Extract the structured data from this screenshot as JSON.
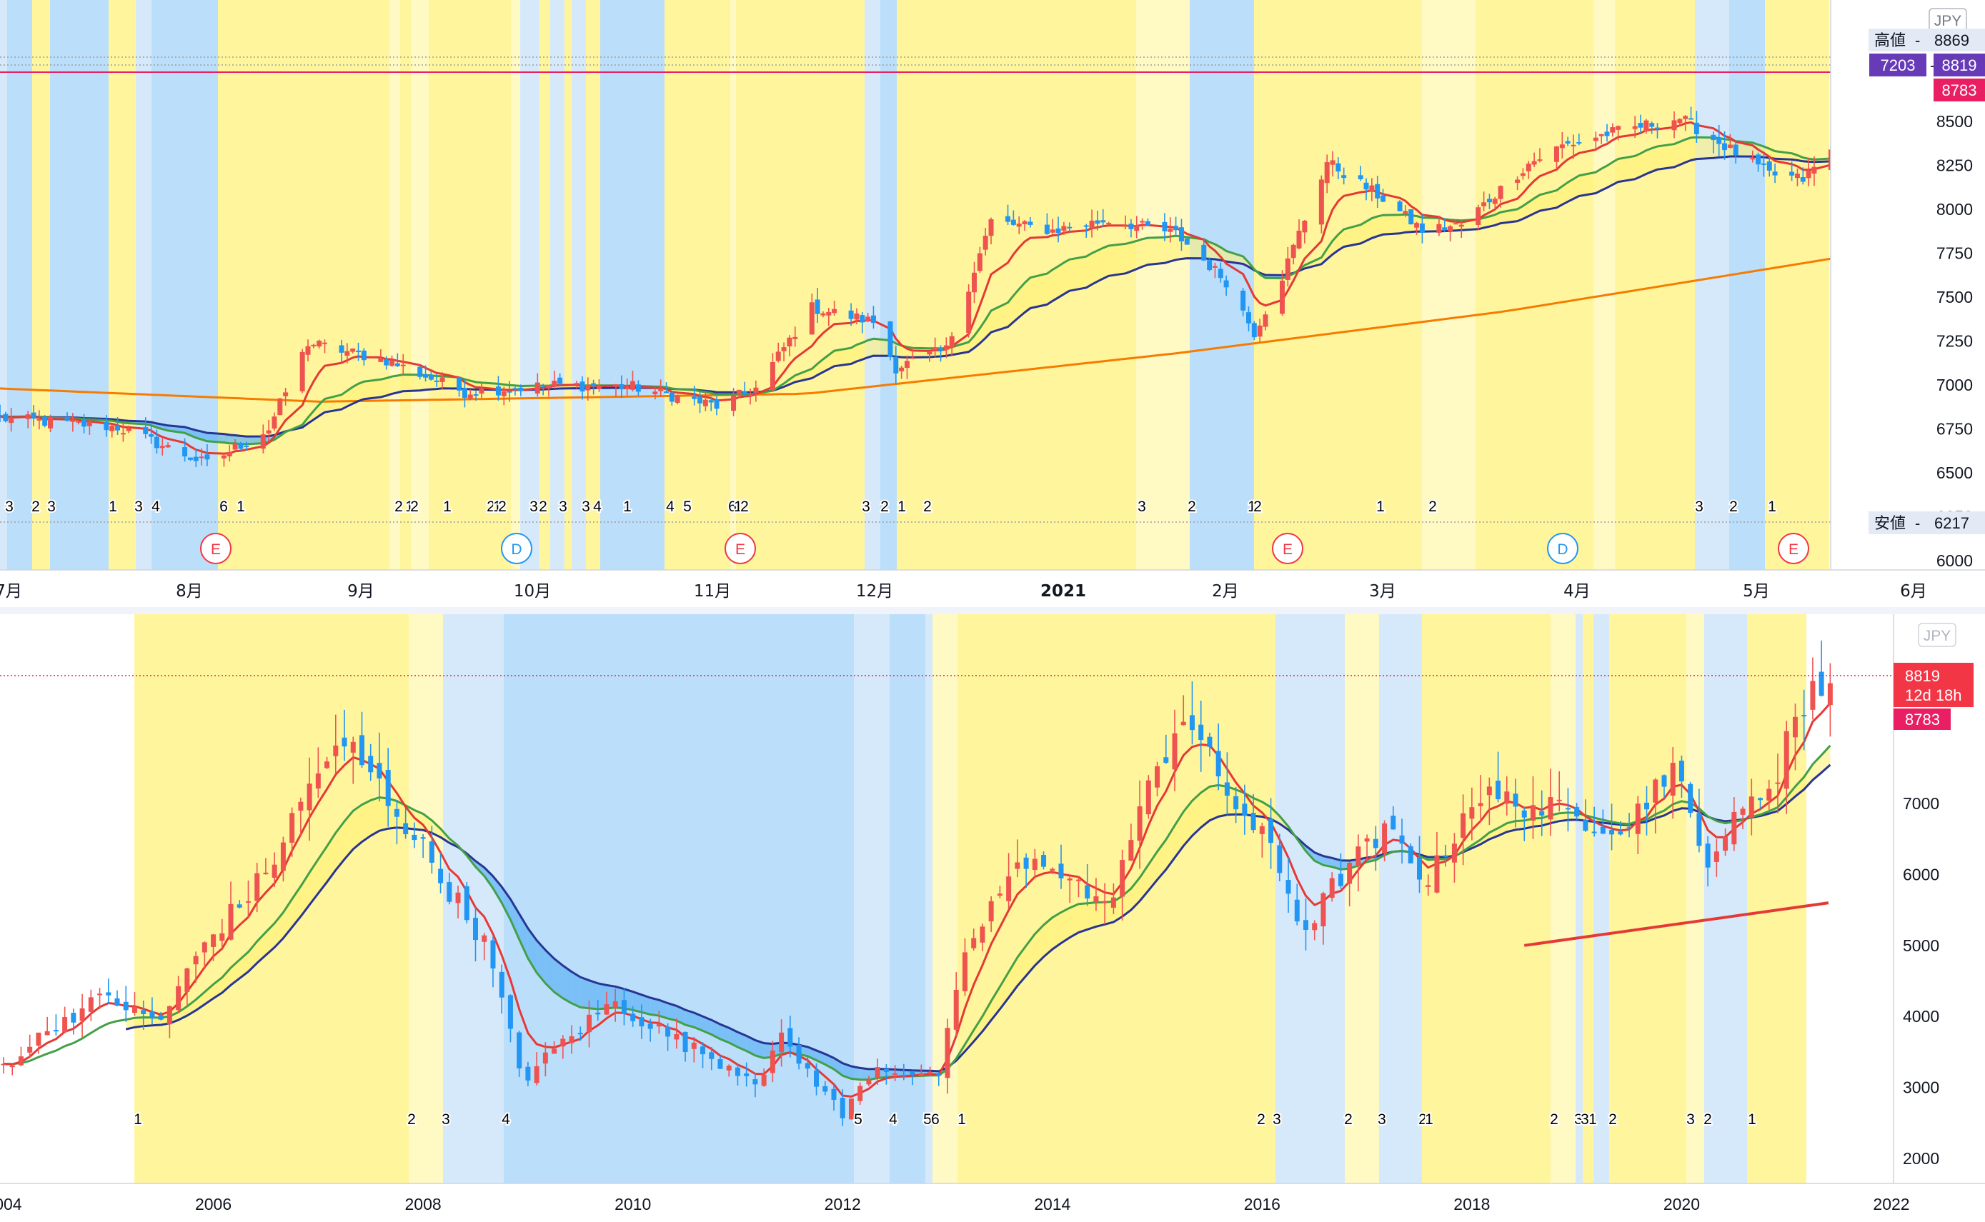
{
  "currency": "JPY",
  "colors": {
    "up": "#ef5350",
    "down": "#2196f3",
    "bull_zone": "#fff59d",
    "bear_zone": "#bbdefb",
    "ema_fast": "#e53935",
    "ema_mid": "#43a047",
    "ema_slow": "#283593",
    "ma_long": "#f57c00",
    "price_line": "#e91e63",
    "high_badge": "#673ab7"
  },
  "top_panel": {
    "high_label": "高値",
    "high_value": "8869",
    "low_label": "安値",
    "low_value": "6217",
    "badge_code": "7203",
    "last_price": "8819",
    "second_price": "8783",
    "earnings_letter": "E",
    "dividend_letter": "D",
    "y_ticks": [
      "8500",
      "8250",
      "8000",
      "7750",
      "7500",
      "7250",
      "7000",
      "6750",
      "6500",
      "6250",
      "6000"
    ],
    "x_labels": [
      "7月",
      "8月",
      "9月",
      "10月",
      "11月",
      "12月",
      "2021",
      "2月",
      "3月",
      "4月",
      "5月",
      "6月"
    ],
    "count_labels": [
      "3",
      "2",
      "3",
      "1",
      "3",
      "4",
      "6",
      "1",
      "2",
      "1",
      "2",
      "1",
      "2",
      "1",
      "2",
      "3",
      "2",
      "3",
      "3",
      "4",
      "1",
      "4",
      "5",
      "6",
      "1",
      "2",
      "3",
      "2",
      "1",
      "2",
      "3",
      "2",
      "1",
      "2",
      "1",
      "2",
      "3",
      "2",
      "1"
    ]
  },
  "bottom_panel": {
    "last_price": "8819",
    "countdown": "12d 18h",
    "second_price": "8783",
    "y_ticks": [
      "7000",
      "6000",
      "5000",
      "4000",
      "3000",
      "2000"
    ],
    "x_labels": [
      "2004",
      "2006",
      "2008",
      "2010",
      "2012",
      "2014",
      "2016",
      "2018",
      "2020",
      "2022"
    ],
    "count_labels": [
      "1",
      "2",
      "3",
      "4",
      "5",
      "4",
      "5",
      "6",
      "1",
      "2",
      "3",
      "2",
      "3",
      "2",
      "1",
      "2",
      "3",
      "3",
      "1",
      "2",
      "3",
      "2",
      "1"
    ]
  },
  "chart_data": [
    {
      "type": "candlestick",
      "title": "",
      "timeframe": "daily",
      "x_range": [
        "2020-07",
        "2021-06"
      ],
      "ylim": [
        6000,
        8900
      ],
      "grid": false,
      "indicators": [
        "EMA fast (red)",
        "EMA mid (green)",
        "EMA slow (navy)",
        "long MA (orange)"
      ],
      "close_path": [
        [
          "2020-06-24",
          6810
        ],
        [
          "2020-07-15",
          6760
        ],
        [
          "2020-07-31",
          6550
        ],
        [
          "2020-08-11",
          6750
        ],
        [
          "2020-08-18",
          7240
        ],
        [
          "2020-09-01",
          7140
        ],
        [
          "2020-09-15",
          6960
        ],
        [
          "2020-10-01",
          7000
        ],
        [
          "2020-10-15",
          6990
        ],
        [
          "2020-10-30",
          6880
        ],
        [
          "2020-11-06",
          6980
        ],
        [
          "2020-11-16",
          7440
        ],
        [
          "2020-11-27",
          7360
        ],
        [
          "2020-12-01",
          7100
        ],
        [
          "2020-12-10",
          7200
        ],
        [
          "2020-12-18",
          7930
        ],
        [
          "2020-12-29",
          7880
        ],
        [
          "2021-01-08",
          7940
        ],
        [
          "2021-01-20",
          7860
        ],
        [
          "2021-01-29",
          7590
        ],
        [
          "2021-02-03",
          7300
        ],
        [
          "2021-02-08",
          7620
        ],
        [
          "2021-02-16",
          8270
        ],
        [
          "2021-02-26",
          8060
        ],
        [
          "2021-03-05",
          7880
        ],
        [
          "2021-03-12",
          7910
        ],
        [
          "2021-03-24",
          8260
        ],
        [
          "2021-03-30",
          8360
        ],
        [
          "2021-04-07",
          8430
        ],
        [
          "2021-04-20",
          8520
        ],
        [
          "2021-05-06",
          8200
        ],
        [
          "2021-05-12",
          8170
        ],
        [
          "2021-05-21",
          8460
        ],
        [
          "2021-05-27",
          8819
        ]
      ],
      "high": 8869,
      "low": 6217,
      "last": 8819,
      "reference": 8783,
      "events": [
        {
          "type": "E",
          "date": "2020-08-06"
        },
        {
          "type": "D",
          "date": "2020-09-29"
        },
        {
          "type": "E",
          "date": "2020-11-06"
        },
        {
          "type": "E",
          "date": "2021-02-10"
        },
        {
          "type": "D",
          "date": "2021-03-30"
        },
        {
          "type": "E",
          "date": "2021-05-12"
        }
      ]
    },
    {
      "type": "candlestick",
      "title": "",
      "timeframe": "monthly",
      "x_range": [
        2004,
        2022
      ],
      "ylim": [
        1700,
        9200
      ],
      "grid": false,
      "indicators": [
        "EMA fast (red)",
        "EMA mid (green)",
        "EMA slow (navy)",
        "long MA (red, from 2018)"
      ],
      "close_path": [
        [
          2004.0,
          3300
        ],
        [
          2004.5,
          3900
        ],
        [
          2005.0,
          4300
        ],
        [
          2005.3,
          4000
        ],
        [
          2005.5,
          3950
        ],
        [
          2005.9,
          5000
        ],
        [
          2006.5,
          6000
        ],
        [
          2007.0,
          7500
        ],
        [
          2007.3,
          7800
        ],
        [
          2007.8,
          6800
        ],
        [
          2008.2,
          5900
        ],
        [
          2008.6,
          5000
        ],
        [
          2008.95,
          3100
        ],
        [
          2009.3,
          3600
        ],
        [
          2009.8,
          4200
        ],
        [
          2010.5,
          3600
        ],
        [
          2011.2,
          3100
        ],
        [
          2011.4,
          3700
        ],
        [
          2011.8,
          3000
        ],
        [
          2012.0,
          2600
        ],
        [
          2012.3,
          3300
        ],
        [
          2012.7,
          3200
        ],
        [
          2012.9,
          3100
        ],
        [
          2013.2,
          5000
        ],
        [
          2013.6,
          6000
        ],
        [
          2014.0,
          6200
        ],
        [
          2014.5,
          5500
        ],
        [
          2015.0,
          7500
        ],
        [
          2015.25,
          8300
        ],
        [
          2015.6,
          7300
        ],
        [
          2015.95,
          6600
        ],
        [
          2016.1,
          6300
        ],
        [
          2016.4,
          5200
        ],
        [
          2016.8,
          6100
        ],
        [
          2017.2,
          6600
        ],
        [
          2017.6,
          5900
        ],
        [
          2018.0,
          7100
        ],
        [
          2018.5,
          7000
        ],
        [
          2019.0,
          6800
        ],
        [
          2019.5,
          6700
        ],
        [
          2019.9,
          7600
        ],
        [
          2020.2,
          6200
        ],
        [
          2020.5,
          6700
        ],
        [
          2020.9,
          7400
        ],
        [
          2021.0,
          8000
        ],
        [
          2021.4,
          8819
        ]
      ],
      "last": 8819,
      "reference": 8783
    }
  ]
}
